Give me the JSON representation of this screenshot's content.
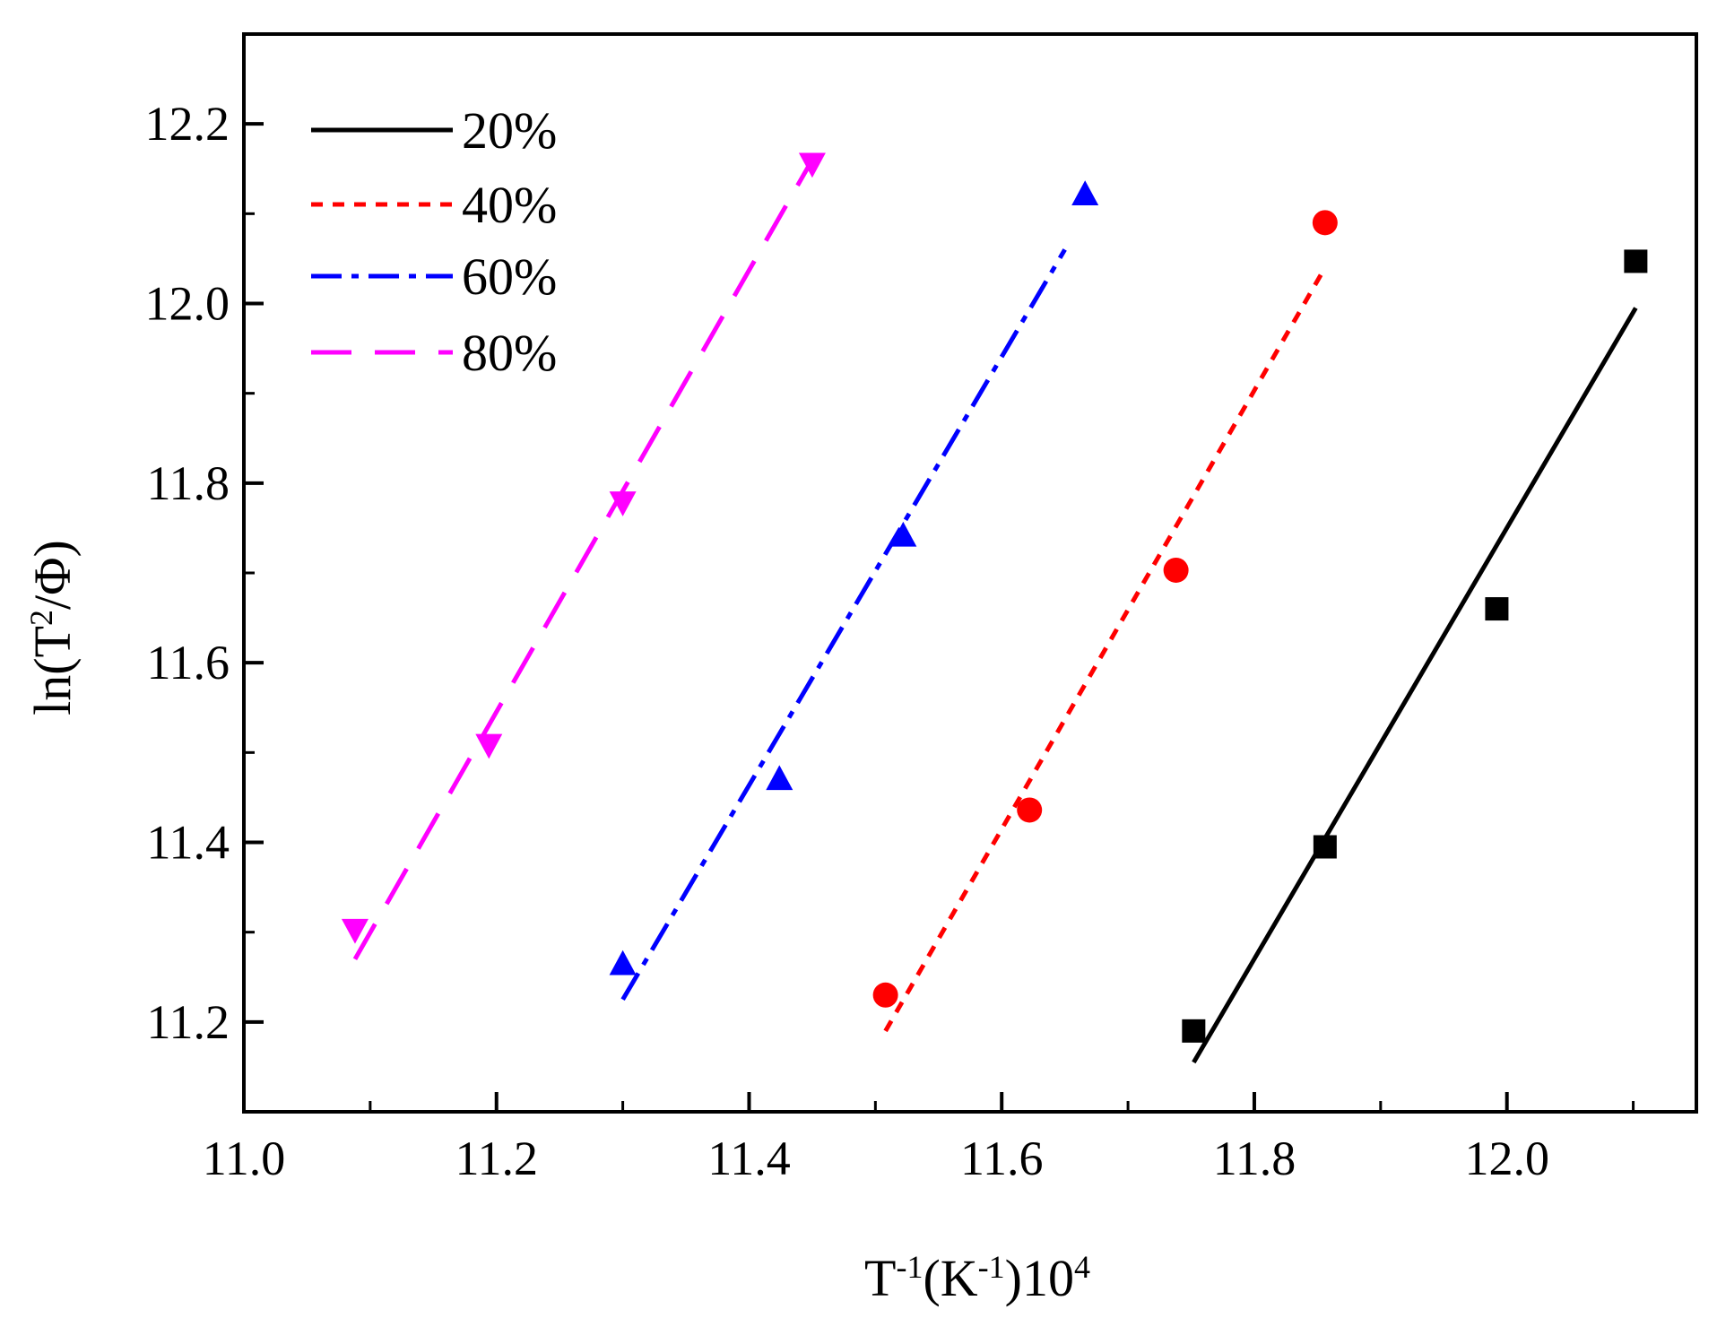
{
  "chart_data": {
    "type": "scatter",
    "title": "",
    "xlabel": {
      "base": "T",
      "sup1": "-1",
      "mid": "(K",
      "sup2": "-1",
      "end": ")10",
      "sup3": "4"
    },
    "ylabel": {
      "pre": "ln(T",
      "sup": "2",
      "post": "/Φ)"
    },
    "xlim": [
      11.0,
      12.15
    ],
    "ylim": [
      11.1,
      12.3
    ],
    "xticks_major": [
      "11.0",
      "11.2",
      "11.4",
      "11.6",
      "11.8",
      "12.0"
    ],
    "yticks_major": [
      "11.2",
      "11.4",
      "11.6",
      "11.8",
      "12.0",
      "12.2"
    ],
    "grid": false,
    "legend_position": "top-left",
    "series": [
      {
        "name": "20%",
        "color": "#000000",
        "marker": "square",
        "line_style": "solid",
        "x": [
          11.752,
          11.856,
          11.992,
          12.102
        ],
        "y": [
          11.19,
          11.395,
          11.66,
          12.047
        ],
        "fit": {
          "x": [
            11.752,
            12.102
          ],
          "y": [
            11.155,
            11.995
          ]
        }
      },
      {
        "name": "40%",
        "color": "#ff0000",
        "marker": "circle",
        "line_style": "dot",
        "x": [
          11.508,
          11.622,
          11.738,
          11.856
        ],
        "y": [
          11.23,
          11.436,
          11.703,
          12.09
        ],
        "fit": {
          "x": [
            11.508,
            11.856
          ],
          "y": [
            11.19,
            12.04
          ]
        }
      },
      {
        "name": "60%",
        "color": "#0000ff",
        "marker": "triangle-up",
        "line_style": "dashdot",
        "x": [
          11.3,
          11.424,
          11.522,
          11.666
        ],
        "y": [
          11.265,
          11.471,
          11.742,
          12.122
        ],
        "fit": {
          "x": [
            11.3,
            11.65
          ],
          "y": [
            11.225,
            12.06
          ]
        }
      },
      {
        "name": "80%",
        "color": "#ff00ff",
        "marker": "triangle-down",
        "line_style": "dash",
        "x": [
          11.088,
          11.194,
          11.3,
          11.45
        ],
        "y": [
          11.302,
          11.508,
          11.778,
          12.155
        ],
        "fit": {
          "x": [
            11.088,
            11.45
          ],
          "y": [
            11.27,
            12.16
          ]
        }
      }
    ]
  }
}
